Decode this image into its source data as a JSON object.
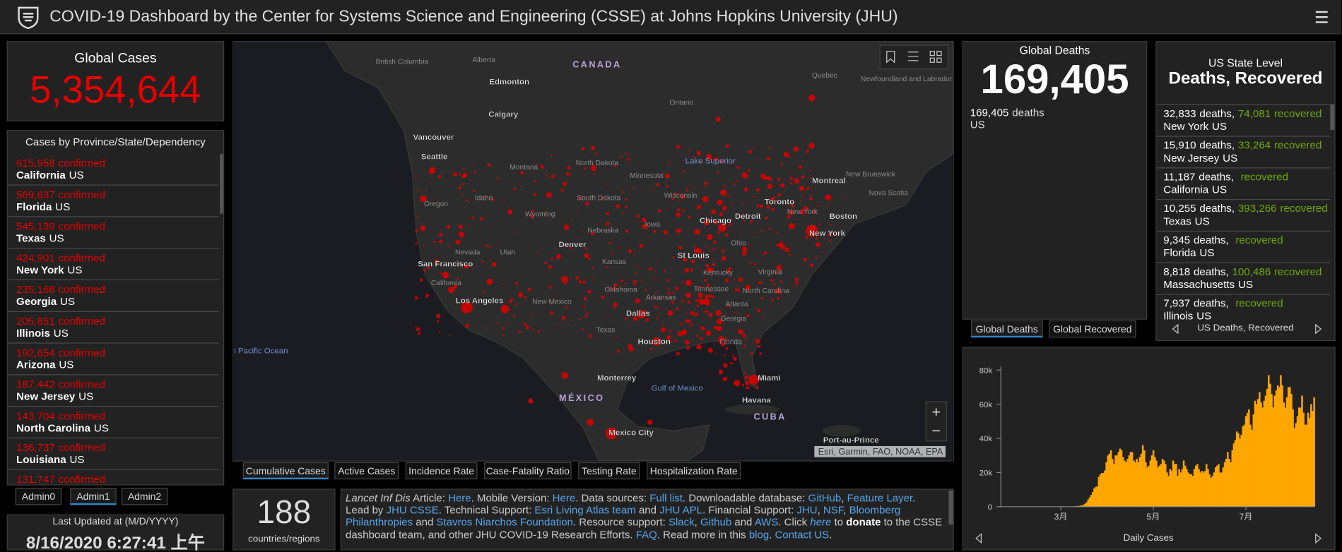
{
  "header": {
    "title": "COVID-19 Dashboard by the Center for Systems Science and Engineering (CSSE) at Johns Hopkins University (JHU)"
  },
  "global_cases": {
    "label": "Global Cases",
    "value": "5,354,644"
  },
  "provinces": {
    "title": "Cases by Province/State/Dependency",
    "items": [
      {
        "count": "615,958",
        "suffix": "confirmed",
        "name": "California",
        "country": "US"
      },
      {
        "count": "569,637",
        "suffix": "confirmed",
        "name": "Florida",
        "country": "US"
      },
      {
        "count": "545,139",
        "suffix": "confirmed",
        "name": "Texas",
        "country": "US"
      },
      {
        "count": "424,901",
        "suffix": "confirmed",
        "name": "New York",
        "country": "US"
      },
      {
        "count": "235,168",
        "suffix": "confirmed",
        "name": "Georgia",
        "country": "US"
      },
      {
        "count": "205,851",
        "suffix": "confirmed",
        "name": "Illinois",
        "country": "US"
      },
      {
        "count": "192,654",
        "suffix": "confirmed",
        "name": "Arizona",
        "country": "US"
      },
      {
        "count": "187,442",
        "suffix": "confirmed",
        "name": "New Jersey",
        "country": "US"
      },
      {
        "count": "143,704",
        "suffix": "confirmed",
        "name": "North Carolina",
        "country": "US"
      },
      {
        "count": "136,737",
        "suffix": "confirmed",
        "name": "Louisiana",
        "country": "US"
      },
      {
        "count": "131,747",
        "suffix": "confirmed"
      }
    ]
  },
  "admin_tabs": [
    "Admin0",
    "Admin1",
    "Admin2"
  ],
  "last_updated": {
    "label": "Last Updated at (M/D/YYYY)",
    "value": "8/16/2020 6:27:41 上午"
  },
  "map": {
    "labels": [
      "CANADA",
      "Alberta",
      "British Columbia",
      "Edmonton",
      "Calgary",
      "Vancouver",
      "Seattle",
      "Montana",
      "North Dakota",
      "Minnesota",
      "Lake Superior",
      "Ontario",
      "Quebec",
      "Newfoundland and Labrador",
      "Montreal",
      "New Brunswick",
      "Nova Scotia",
      "Toronto",
      "Oregon",
      "Idaho",
      "South Dakota",
      "Wisconsin",
      "Wyoming",
      "Detroit",
      "Chicago",
      "New York",
      "Boston",
      "New York",
      "Iowa",
      "Nebraska",
      "Nevada",
      "Utah",
      "Denver",
      "Ohio",
      "St Louis",
      "San Francisco",
      "California",
      "Kansas",
      "Kentucky",
      "Virginia",
      "Los Angeles",
      "New Mexico",
      "Oklahoma",
      "Arkansas",
      "Tennessee",
      "North Carolina",
      "Atlanta",
      "Dallas",
      "Texas",
      "Georgia",
      "Houston",
      "Florida",
      "North Pacific Ocean",
      "Gulf of Mexico",
      "Miami",
      "Monterrey",
      "Havana",
      "MÉXICO",
      "CUBA",
      "Mexico City",
      "Port-au-Prince"
    ],
    "attribution": "Esri, Garmin, FAO, NOAA, EPA",
    "zoom_in": "+",
    "zoom_out": "−",
    "tabs": [
      "Cumulative Cases",
      "Active Cases",
      "Incidence Rate",
      "Case-Fatality Ratio",
      "Testing Rate",
      "Hospitalization Rate"
    ]
  },
  "countries": {
    "count": "188",
    "label": "countries/regions"
  },
  "info": {
    "paragraphs": [
      [
        {
          "text": "Lancet Inf Dis",
          "style": "italic"
        },
        {
          "text": " Article: "
        },
        {
          "text": "Here",
          "style": "link"
        },
        {
          "text": ". Mobile Version: "
        },
        {
          "text": "Here",
          "style": "link"
        },
        {
          "text": ". Data sources: "
        },
        {
          "text": "Full list",
          "style": "link"
        },
        {
          "text": ". Downloadable database: "
        },
        {
          "text": "GitHub",
          "style": "link"
        },
        {
          "text": ", "
        },
        {
          "text": "Feature Layer",
          "style": "link"
        },
        {
          "text": "."
        }
      ],
      [
        {
          "text": "Lead by "
        },
        {
          "text": "JHU CSSE",
          "style": "link"
        },
        {
          "text": ". Technical Support: "
        },
        {
          "text": "Esri Living Atlas team",
          "style": "link"
        },
        {
          "text": " and "
        },
        {
          "text": "JHU APL",
          "style": "link"
        },
        {
          "text": ". Financial Support: "
        },
        {
          "text": "JHU",
          "style": "link"
        },
        {
          "text": ", "
        },
        {
          "text": "NSF",
          "style": "link"
        },
        {
          "text": ", "
        },
        {
          "text": "Bloomberg Philanthropies",
          "style": "link"
        },
        {
          "text": " and "
        },
        {
          "text": "Stavros Niarchos Foundation",
          "style": "link"
        },
        {
          "text": ". Resource support: "
        },
        {
          "text": "Slack",
          "style": "link"
        },
        {
          "text": ", "
        },
        {
          "text": "Github",
          "style": "link"
        },
        {
          "text": " and "
        },
        {
          "text": "AWS",
          "style": "link"
        },
        {
          "text": ". Click "
        },
        {
          "text": "here",
          "style": "link-italic"
        },
        {
          "text": " to "
        },
        {
          "text": "donate",
          "style": "bold"
        },
        {
          "text": " to the CSSE dashboard team, and other JHU COVID-19 Research Efforts. "
        },
        {
          "text": "FAQ",
          "style": "link"
        },
        {
          "text": ". Read more in this "
        },
        {
          "text": "blog",
          "style": "link"
        },
        {
          "text": ". "
        },
        {
          "text": "Contact US",
          "style": "link"
        },
        {
          "text": "."
        }
      ]
    ]
  },
  "global_deaths": {
    "title": "Global Deaths",
    "value": "169,405",
    "items": [
      {
        "value": "169,405",
        "suffix": "deaths",
        "name": "US"
      }
    ],
    "tabs": [
      "Global Deaths",
      "Global Recovered"
    ]
  },
  "us_state": {
    "title": "US State Level",
    "subtitle": "Deaths, Recovered",
    "items": [
      {
        "deaths": "32,833",
        "deaths_label": "deaths,",
        "recovered": "74,081",
        "recovered_label": "recovered",
        "name": "New York",
        "country": "US"
      },
      {
        "deaths": "15,910",
        "deaths_label": "deaths,",
        "recovered": "33,264",
        "recovered_label": "recovered",
        "name": "New Jersey",
        "country": "US"
      },
      {
        "deaths": "11,187",
        "deaths_label": "deaths,",
        "recovered_label": "recovered",
        "name": "California",
        "country": "US"
      },
      {
        "deaths": "10,255",
        "deaths_label": "deaths,",
        "recovered": "393,266",
        "recovered_label": "recovered",
        "name": "Texas",
        "country": "US"
      },
      {
        "deaths": "9,345",
        "deaths_label": "deaths,",
        "recovered_label": "recovered",
        "name": "Florida",
        "country": "US"
      },
      {
        "deaths": "8,818",
        "deaths_label": "deaths,",
        "recovered": "100,486",
        "recovered_label": "recovered",
        "name": "Massachusetts",
        "country": "US"
      },
      {
        "deaths": "7,937",
        "deaths_label": "deaths,",
        "recovered_label": "recovered",
        "name": "Illinois",
        "country": "US"
      }
    ],
    "footer": "US Deaths, Recovered"
  },
  "chart_data": {
    "type": "bar",
    "title": "Daily Cases",
    "color": "#ffa600",
    "categories": [
      null,
      null,
      null,
      null,
      null,
      null,
      null,
      null,
      null,
      null,
      null,
      null,
      null,
      null,
      null,
      null,
      null,
      null,
      null,
      null,
      null,
      null,
      null,
      null,
      null,
      null,
      null,
      null,
      null,
      null,
      null,
      null,
      null,
      null,
      null,
      null,
      null,
      null,
      null,
      "3月",
      null,
      null,
      null,
      null,
      null,
      null,
      null,
      null,
      null,
      null,
      null,
      null,
      null,
      null,
      null,
      null,
      null,
      null,
      null,
      null,
      null,
      null,
      null,
      null,
      null,
      null,
      null,
      null,
      null,
      null,
      null,
      null,
      null,
      null,
      null,
      null,
      null,
      null,
      null,
      null,
      null,
      null,
      null,
      null,
      null,
      null,
      null,
      null,
      null,
      null,
      null,
      null,
      null,
      null,
      null,
      null,
      null,
      null,
      null,
      null,
      "5月",
      null,
      null,
      null,
      null,
      null,
      null,
      null,
      null,
      null,
      null,
      null,
      null,
      null,
      null,
      null,
      null,
      null,
      null,
      null,
      null,
      null,
      null,
      null,
      null,
      null,
      null,
      null,
      null,
      null,
      null,
      null,
      null,
      null,
      null,
      null,
      null,
      null,
      null,
      null,
      null,
      null,
      null,
      null,
      null,
      null,
      null,
      null,
      null,
      null,
      null,
      null,
      null,
      null,
      null,
      null,
      null,
      null,
      null,
      null,
      null,
      "7月",
      null,
      null,
      null,
      null,
      null,
      null,
      null,
      null,
      null,
      null,
      null,
      null,
      null,
      null,
      null,
      null,
      null,
      null,
      null,
      null,
      null,
      null,
      null,
      null,
      null,
      null,
      null,
      null,
      null,
      null,
      null,
      null,
      null,
      null,
      null,
      null,
      null,
      null,
      null,
      null,
      null,
      null,
      null,
      null,
      null
    ],
    "values": [
      1,
      0,
      0,
      1,
      0,
      0,
      0,
      0,
      0,
      1,
      1,
      0,
      1,
      0,
      0,
      0,
      0,
      0,
      0,
      0,
      1,
      0,
      0,
      0,
      0,
      0,
      0,
      0,
      0,
      0,
      0,
      0,
      0,
      0,
      0,
      5,
      5,
      7,
      9,
      8,
      12,
      19,
      30,
      60,
      75,
      90,
      120,
      150,
      210,
      280,
      400,
      500,
      600,
      800,
      1200,
      1700,
      2600,
      4200,
      5500,
      6900,
      8600,
      10800,
      11600,
      11900,
      17500,
      18900,
      19700,
      19800,
      21200,
      26000,
      30000,
      31000,
      33000,
      28000,
      25000,
      30000,
      30000,
      32000,
      34000,
      33000,
      29000,
      27000,
      26000,
      28000,
      30000,
      32000,
      32000,
      27000,
      26000,
      28000,
      26000,
      29000,
      31000,
      36000,
      33000,
      26000,
      23000,
      24000,
      27000,
      30000,
      33000,
      29000,
      27000,
      23000,
      24000,
      25000,
      28000,
      27000,
      25000,
      20000,
      18000,
      22000,
      21000,
      27000,
      25000,
      25000,
      18000,
      22000,
      20000,
      22000,
      27000,
      24000,
      22000,
      20000,
      19000,
      19000,
      18000,
      22000,
      24000,
      25000,
      22000,
      20000,
      21000,
      20000,
      21000,
      25000,
      22000,
      19000,
      17000,
      18000,
      20000,
      23000,
      24000,
      25000,
      20000,
      20000,
      23000,
      26000,
      28000,
      32000,
      28000,
      26000,
      33000,
      37000,
      39000,
      44000,
      43000,
      40000,
      42000,
      47000,
      48000,
      53000,
      55000,
      57000,
      48000,
      45000,
      54000,
      62000,
      60000,
      63000,
      67000,
      61000,
      58000,
      62000,
      65000,
      69000,
      77000,
      72000,
      66000,
      58000,
      65000,
      68000,
      71000,
      70000,
      77000,
      71000,
      61000,
      58000,
      64000,
      70000,
      70000,
      66000,
      57000,
      46000,
      49000,
      53000,
      58000,
      58000,
      65000,
      55000,
      48000,
      48000,
      55000,
      52000,
      60000,
      56000,
      64000
    ],
    "ylim": [
      0,
      80000
    ],
    "yticks": [
      0,
      {
        "value": 20000,
        "label": "20k"
      },
      {
        "value": 40000,
        "label": "40k"
      },
      {
        "value": 60000,
        "label": "60k"
      },
      {
        "value": 80000,
        "label": "80k"
      }
    ]
  }
}
